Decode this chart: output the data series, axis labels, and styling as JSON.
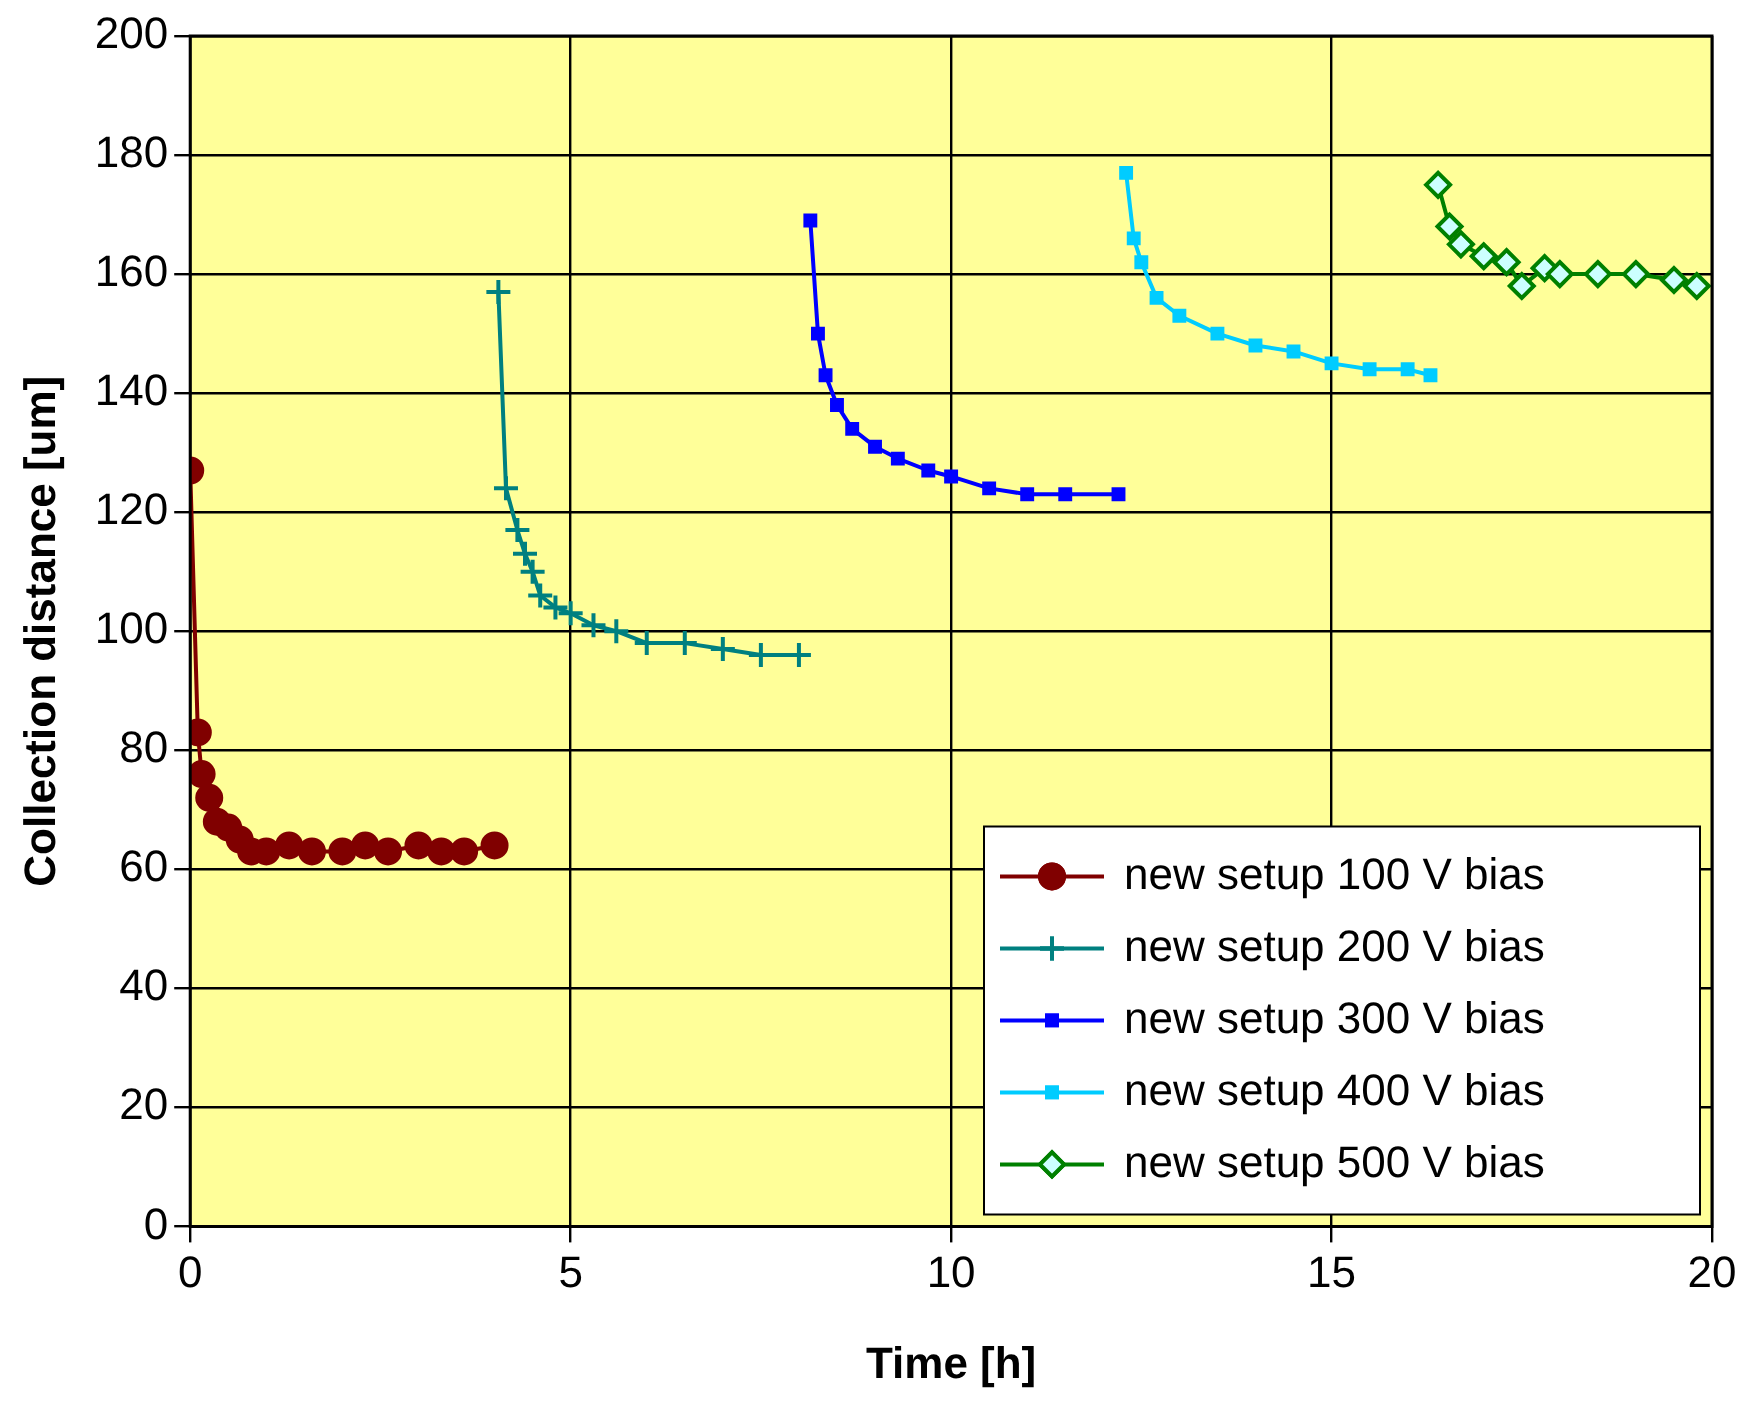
{
  "chart_data": {
    "type": "line",
    "xlabel": "Time [h]",
    "ylabel": "Collection distance [um]",
    "xlim": [
      0,
      20
    ],
    "xticks": [
      0,
      5,
      10,
      15,
      20
    ],
    "ylim": [
      0,
      200
    ],
    "yticks": [
      0,
      20,
      40,
      60,
      80,
      100,
      120,
      140,
      160,
      180,
      200
    ],
    "grid": true,
    "legend": "bottom right",
    "series": [
      {
        "name": "new setup 100 V bias",
        "color": "#800000",
        "marker": "circle",
        "x": [
          0,
          0.1,
          0.15,
          0.25,
          0.35,
          0.5,
          0.65,
          0.8,
          1,
          1.3,
          1.6,
          2,
          2.3,
          2.6,
          3,
          3.3,
          3.6,
          4
        ],
        "values": [
          127,
          83,
          76,
          72,
          68,
          67,
          65,
          63,
          63,
          64,
          63,
          63,
          64,
          63,
          64,
          63,
          63,
          64
        ]
      },
      {
        "name": "new setup 200 V bias",
        "color": "#008080",
        "marker": "cross",
        "x": [
          4.05,
          4.15,
          4.3,
          4.4,
          4.5,
          4.6,
          4.8,
          5,
          5.3,
          5.6,
          6,
          6.5,
          7,
          7.5,
          8
        ],
        "values": [
          157,
          124,
          117,
          113,
          110,
          106,
          104,
          103,
          101,
          100,
          98,
          98,
          97,
          96,
          96
        ]
      },
      {
        "name": "new setup 300 V bias",
        "color": "#0000ff",
        "marker": "square",
        "x": [
          8.15,
          8.25,
          8.35,
          8.5,
          8.7,
          9,
          9.3,
          9.7,
          10,
          10.5,
          11,
          11.5,
          12.2
        ],
        "values": [
          169,
          150,
          143,
          138,
          134,
          131,
          129,
          127,
          126,
          124,
          123,
          123,
          123
        ]
      },
      {
        "name": "new setup 400 V bias",
        "color": "#00ccff",
        "marker": "square",
        "x": [
          12.3,
          12.4,
          12.5,
          12.7,
          13,
          13.5,
          14,
          14.5,
          15,
          15.5,
          16,
          16.3
        ],
        "values": [
          177,
          166,
          162,
          156,
          153,
          150,
          148,
          147,
          145,
          144,
          144,
          143
        ]
      },
      {
        "name": "new setup 500 V bias",
        "color": "#008000",
        "marker": "diamond",
        "x": [
          16.4,
          16.55,
          16.7,
          17,
          17.3,
          17.5,
          17.8,
          18,
          18.5,
          19,
          19.5,
          19.8
        ],
        "values": [
          175,
          168,
          165,
          163,
          162,
          158,
          161,
          160,
          160,
          160,
          159,
          158
        ]
      }
    ]
  }
}
